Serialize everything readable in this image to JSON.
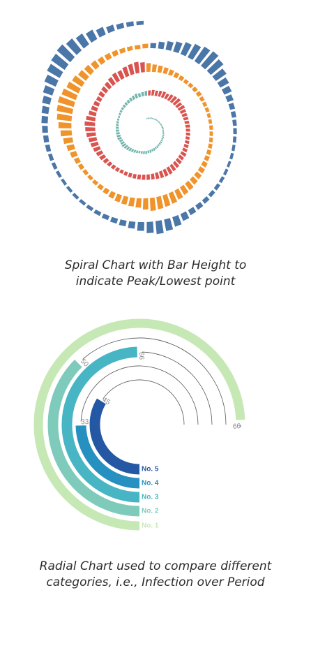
{
  "chart_data": [
    {
      "type": "bar",
      "variant": "spiral",
      "title": "",
      "rings": 4,
      "series": [
        {
          "color": "#73b5ad"
        },
        {
          "color": "#d9534f"
        },
        {
          "color": "#f0932b"
        },
        {
          "color": "#4a76a8"
        }
      ],
      "values": [
        1,
        2,
        1,
        1,
        2,
        1,
        1,
        2,
        2,
        1,
        1,
        2,
        1,
        2,
        2,
        3,
        3,
        2,
        2,
        3,
        3,
        4,
        3,
        3,
        4,
        4,
        3,
        5,
        4,
        6,
        5,
        7,
        6,
        8,
        7,
        6,
        5,
        6,
        7,
        8,
        9,
        10,
        11,
        12,
        10,
        9,
        11,
        10,
        9,
        8,
        7,
        6,
        5,
        4,
        3,
        4,
        5,
        5,
        6,
        7,
        8,
        9,
        10,
        12,
        10,
        11,
        13,
        14,
        16,
        15,
        17,
        18,
        16,
        20,
        22,
        24,
        18,
        20,
        16,
        14,
        13,
        12,
        12,
        11,
        11,
        10,
        11,
        12,
        13,
        16,
        15,
        17,
        19,
        20,
        22,
        21,
        20,
        18,
        16,
        15,
        14,
        13,
        12,
        11,
        10,
        9,
        10,
        11,
        12,
        14,
        16,
        18,
        20,
        22,
        24,
        28,
        30,
        32,
        28,
        22,
        18,
        16,
        14,
        16,
        18,
        20,
        24,
        28,
        26,
        30,
        32,
        34,
        30,
        26,
        22,
        20,
        18,
        16,
        14,
        12,
        10,
        10,
        11,
        12,
        10,
        9,
        9,
        8,
        8,
        9,
        8,
        9,
        10,
        11,
        12,
        14,
        16,
        18,
        20,
        24,
        26,
        30,
        34,
        36,
        38,
        40,
        34,
        28,
        26,
        24,
        22,
        18,
        14,
        12,
        10,
        9,
        10,
        12,
        14,
        18,
        22,
        28,
        34,
        40,
        46,
        50,
        52,
        48,
        42,
        36,
        30,
        26,
        22,
        18,
        16,
        14,
        12,
        11,
        10,
        12,
        14,
        20,
        26,
        32,
        40,
        48,
        56,
        60,
        52,
        40,
        30,
        24,
        18,
        14,
        12,
        10,
        9,
        8,
        7,
        7,
        6,
        7,
        8,
        9,
        10,
        12,
        14,
        16,
        22,
        30,
        36,
        40,
        34,
        26,
        20,
        16,
        14,
        12,
        10,
        9,
        8,
        8,
        7,
        7,
        8,
        9,
        10,
        12,
        14,
        16,
        18,
        20,
        24,
        30,
        38,
        46,
        52,
        56,
        48,
        40,
        32,
        24,
        18,
        14,
        12,
        10
      ]
    },
    {
      "type": "bar",
      "variant": "radial",
      "title": "",
      "max": 100,
      "categories": [
        "No. 1",
        "No. 2",
        "No. 3",
        "No. 4",
        "No. 5"
      ],
      "values": [
        99,
        50,
        66,
        33,
        45
      ],
      "colors": [
        "#c6e8b4",
        "#7fcbbb",
        "#48b5c4",
        "#2690c0",
        "#2458a5"
      ]
    }
  ],
  "captions": {
    "spiral_line1": "Spiral Chart with Bar Height to",
    "spiral_line2": "indicate Peak/Lowest point",
    "radial_line1": "Radial Chart used to compare different",
    "radial_line2": "categories, i.e., Infection over Period"
  }
}
